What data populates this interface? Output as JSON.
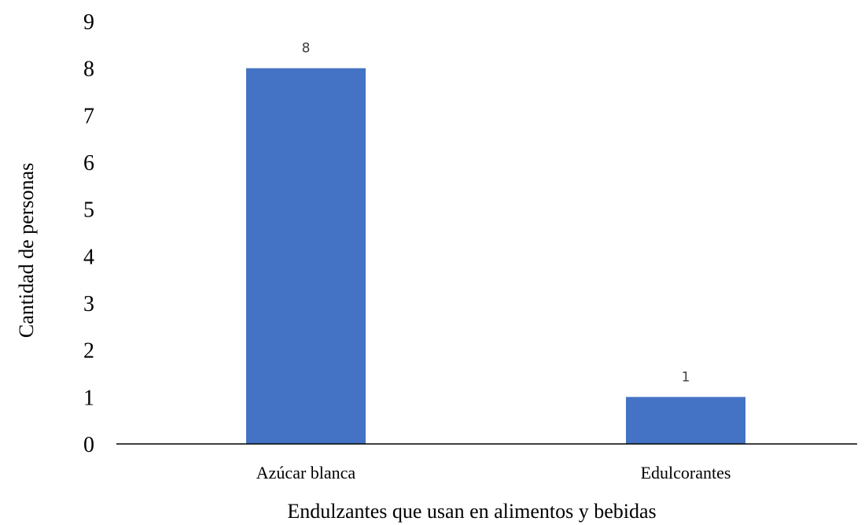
{
  "chart_data": {
    "type": "bar",
    "title": "",
    "xlabel": "Endulzantes que usan en alimentos y bebidas",
    "ylabel": "Cantidad de personas",
    "categories": [
      "Azúcar blanca",
      "Edulcorantes"
    ],
    "values": [
      8,
      1
    ],
    "ylim": [
      0,
      9
    ],
    "yticks": [
      0,
      1,
      2,
      3,
      4,
      5,
      6,
      7,
      8,
      9
    ],
    "data_labels": [
      "8",
      "1"
    ],
    "grid": false,
    "legend": "none",
    "colors": {
      "bar": "#4472C4",
      "axis": "#000000",
      "data_label": "#404040"
    }
  }
}
